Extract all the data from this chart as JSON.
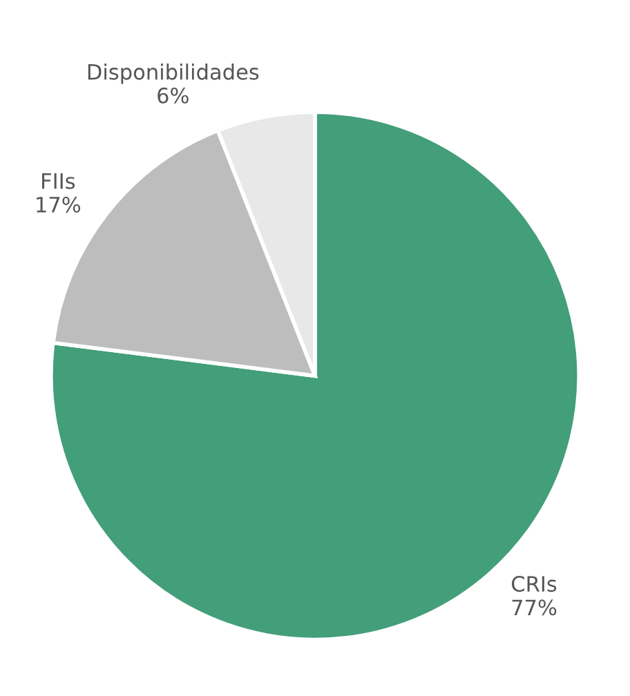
{
  "chart_data": {
    "type": "pie",
    "categories": [
      "CRIs",
      "FIIs",
      "Disponibilidades"
    ],
    "values": [
      77,
      17,
      6
    ],
    "colors": [
      "#439e7a",
      "#bdbdbd",
      "#e8e8e8"
    ],
    "value_labels": [
      "77%",
      "17%",
      "6%"
    ]
  }
}
